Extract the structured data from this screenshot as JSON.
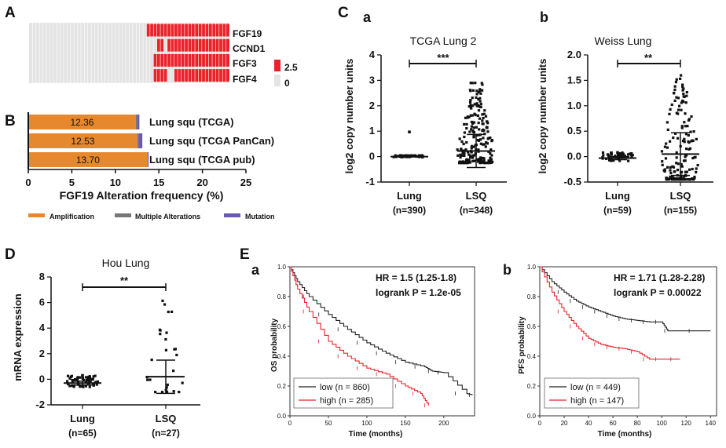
{
  "panel_labels": {
    "A": "A",
    "B": "B",
    "C": "C",
    "D": "D",
    "E": "E"
  },
  "sub_labels": {
    "c_a": "a",
    "c_b": "b",
    "e_a": "a",
    "e_b": "b"
  },
  "colors": {
    "amplification": "#E6882E",
    "multiple": "#777777",
    "mutation": "#6A5AAE",
    "oncoprint_red": "#E8232B",
    "oncoprint_grey": "#E4E4E4",
    "km_high": "#E8232B",
    "km_low": "#222222"
  },
  "chart_data": [
    {
      "type": "heatmap",
      "panel": "A",
      "rows": [
        "FGF19",
        "CCND1",
        "FGF3",
        "FGF4"
      ],
      "scale_labels": [
        "2.5",
        "0"
      ],
      "n_cols": 58,
      "amplified_cols": {
        "FGF19": [
          [
            34,
            57
          ],
          [
            39,
            39
          ]
        ],
        "CCND1": [
          [
            40,
            57
          ],
          [
            37,
            37
          ],
          [
            38,
            38
          ]
        ],
        "FGF3": [
          [
            39,
            57
          ],
          [
            36,
            38
          ],
          [
            40,
            41
          ],
          [
            44,
            44
          ]
        ],
        "FGF4": [
          [
            42,
            57
          ],
          [
            36,
            39
          ]
        ]
      }
    },
    {
      "type": "bar",
      "panel": "B",
      "categories": [
        "Lung squ (TCGA)",
        "Lung squ (TCGA PanCan)",
        "Lung squ (TCGA pub)"
      ],
      "series": [
        {
          "name": "Amplification",
          "values": [
            12.36,
            12.53,
            13.7
          ]
        },
        {
          "name": "Multiple Alterations",
          "values": [
            0.15,
            0.12,
            0.0
          ]
        },
        {
          "name": "Mutation",
          "values": [
            0.25,
            0.45,
            0.12
          ]
        }
      ],
      "value_labels": [
        "12.36",
        "12.53",
        "13.70"
      ],
      "xlabel": "FGF19 Alteration frequency (%)",
      "xlim": [
        0,
        25
      ],
      "xticks": [
        0,
        5,
        10,
        15,
        20,
        25
      ],
      "legend": [
        "Amplification",
        "Multiple Alterations",
        "Mutation"
      ]
    },
    {
      "type": "scatter",
      "panel": "C-a",
      "title": "TCGA Lung 2",
      "ylabel": "log2 copy number units",
      "ylim": [
        -1,
        4
      ],
      "yticks": [
        -1,
        0,
        1,
        2,
        3,
        4
      ],
      "groups": [
        {
          "name": "Lung",
          "n": "(n=390)",
          "mean": 0.0,
          "sd": 0.0,
          "spread_low": -0.02,
          "spread_high": 0.05,
          "max": 0.97
        },
        {
          "name": "LSQ",
          "n": "(n=348)",
          "mean": 0.22,
          "sd": 0.65,
          "spread_low": -0.25,
          "spread_high": 2.95,
          "max": 2.95
        }
      ],
      "significance": "***"
    },
    {
      "type": "scatter",
      "panel": "C-b",
      "title": "Weiss Lung",
      "ylabel": "log2 copy number units",
      "ylim": [
        -0.5,
        2.0
      ],
      "yticks": [
        -0.5,
        0.0,
        0.5,
        1.0,
        1.5,
        2.0
      ],
      "groups": [
        {
          "name": "Lung",
          "n": "(n=59)",
          "mean": -0.03,
          "sd": 0.03,
          "spread_low": -0.09,
          "spread_high": 0.08,
          "max": 0.08
        },
        {
          "name": "LSQ",
          "n": "(n=155)",
          "mean": 0.05,
          "sd": 0.42,
          "spread_low": -0.45,
          "spread_high": 1.62,
          "max": 1.62
        }
      ],
      "significance": "**"
    },
    {
      "type": "scatter",
      "panel": "D",
      "title": "Hou Lung",
      "ylabel": "mRNA expression",
      "ylim": [
        -2,
        8
      ],
      "yticks": [
        -2,
        0,
        2,
        4,
        6,
        8
      ],
      "groups": [
        {
          "name": "Lung",
          "n": "(n=65)",
          "mean": -0.3,
          "sd": 0.15,
          "spread_low": -0.6,
          "spread_high": 0.3,
          "max": 0.3
        },
        {
          "name": "LSQ",
          "n": "(n=27)",
          "mean": 0.2,
          "sd": 1.3,
          "spread_low": -1.0,
          "spread_high": 6.3,
          "max": 6.3
        }
      ],
      "significance": "**"
    },
    {
      "type": "line",
      "panel": "E-a",
      "ylabel": "OS probability",
      "xlabel": "Time (months)",
      "xlim": [
        0,
        240
      ],
      "xticks": [
        0,
        50,
        100,
        150,
        200
      ],
      "ylim": [
        0,
        1
      ],
      "yticks": [
        0.0,
        0.2,
        0.4,
        0.6,
        0.8,
        1.0
      ],
      "annotation": [
        "HR = 1.5 (1.25-1.8)",
        "logrank P = 1.2e-05"
      ],
      "series": [
        {
          "name": "low (n = 860)",
          "x": [
            0,
            10,
            25,
            50,
            75,
            100,
            125,
            150,
            175,
            185,
            200,
            230,
            237
          ],
          "y": [
            1.0,
            0.9,
            0.8,
            0.68,
            0.58,
            0.49,
            0.42,
            0.36,
            0.33,
            0.3,
            0.29,
            0.15,
            0.14
          ]
        },
        {
          "name": "high (n = 285)",
          "x": [
            0,
            10,
            25,
            50,
            75,
            100,
            125,
            150,
            170,
            180
          ],
          "y": [
            1.0,
            0.85,
            0.7,
            0.5,
            0.4,
            0.32,
            0.28,
            0.2,
            0.15,
            0.07
          ]
        }
      ]
    },
    {
      "type": "line",
      "panel": "E-b",
      "ylabel": "PFS probability",
      "xlabel": "Time (months)",
      "xlim": [
        0,
        145
      ],
      "xticks": [
        0,
        20,
        40,
        60,
        80,
        100,
        120,
        140
      ],
      "ylim": [
        0,
        1
      ],
      "yticks": [
        0.0,
        0.2,
        0.4,
        0.6,
        0.8,
        1.0
      ],
      "annotation": [
        "HR = 1.71 (1.28-2.28)",
        "logrank P = 0.00022"
      ],
      "series": [
        {
          "name": "low (n = 449)",
          "x": [
            0,
            10,
            20,
            30,
            40,
            50,
            60,
            70,
            80,
            90,
            100,
            105,
            140
          ],
          "y": [
            1.0,
            0.9,
            0.83,
            0.77,
            0.73,
            0.7,
            0.67,
            0.65,
            0.64,
            0.63,
            0.63,
            0.57,
            0.57
          ]
        },
        {
          "name": "high (n = 147)",
          "x": [
            0,
            10,
            20,
            30,
            40,
            50,
            60,
            70,
            80,
            90,
            100,
            115
          ],
          "y": [
            1.0,
            0.83,
            0.7,
            0.6,
            0.52,
            0.48,
            0.46,
            0.45,
            0.43,
            0.38,
            0.38,
            0.38
          ]
        }
      ]
    }
  ]
}
